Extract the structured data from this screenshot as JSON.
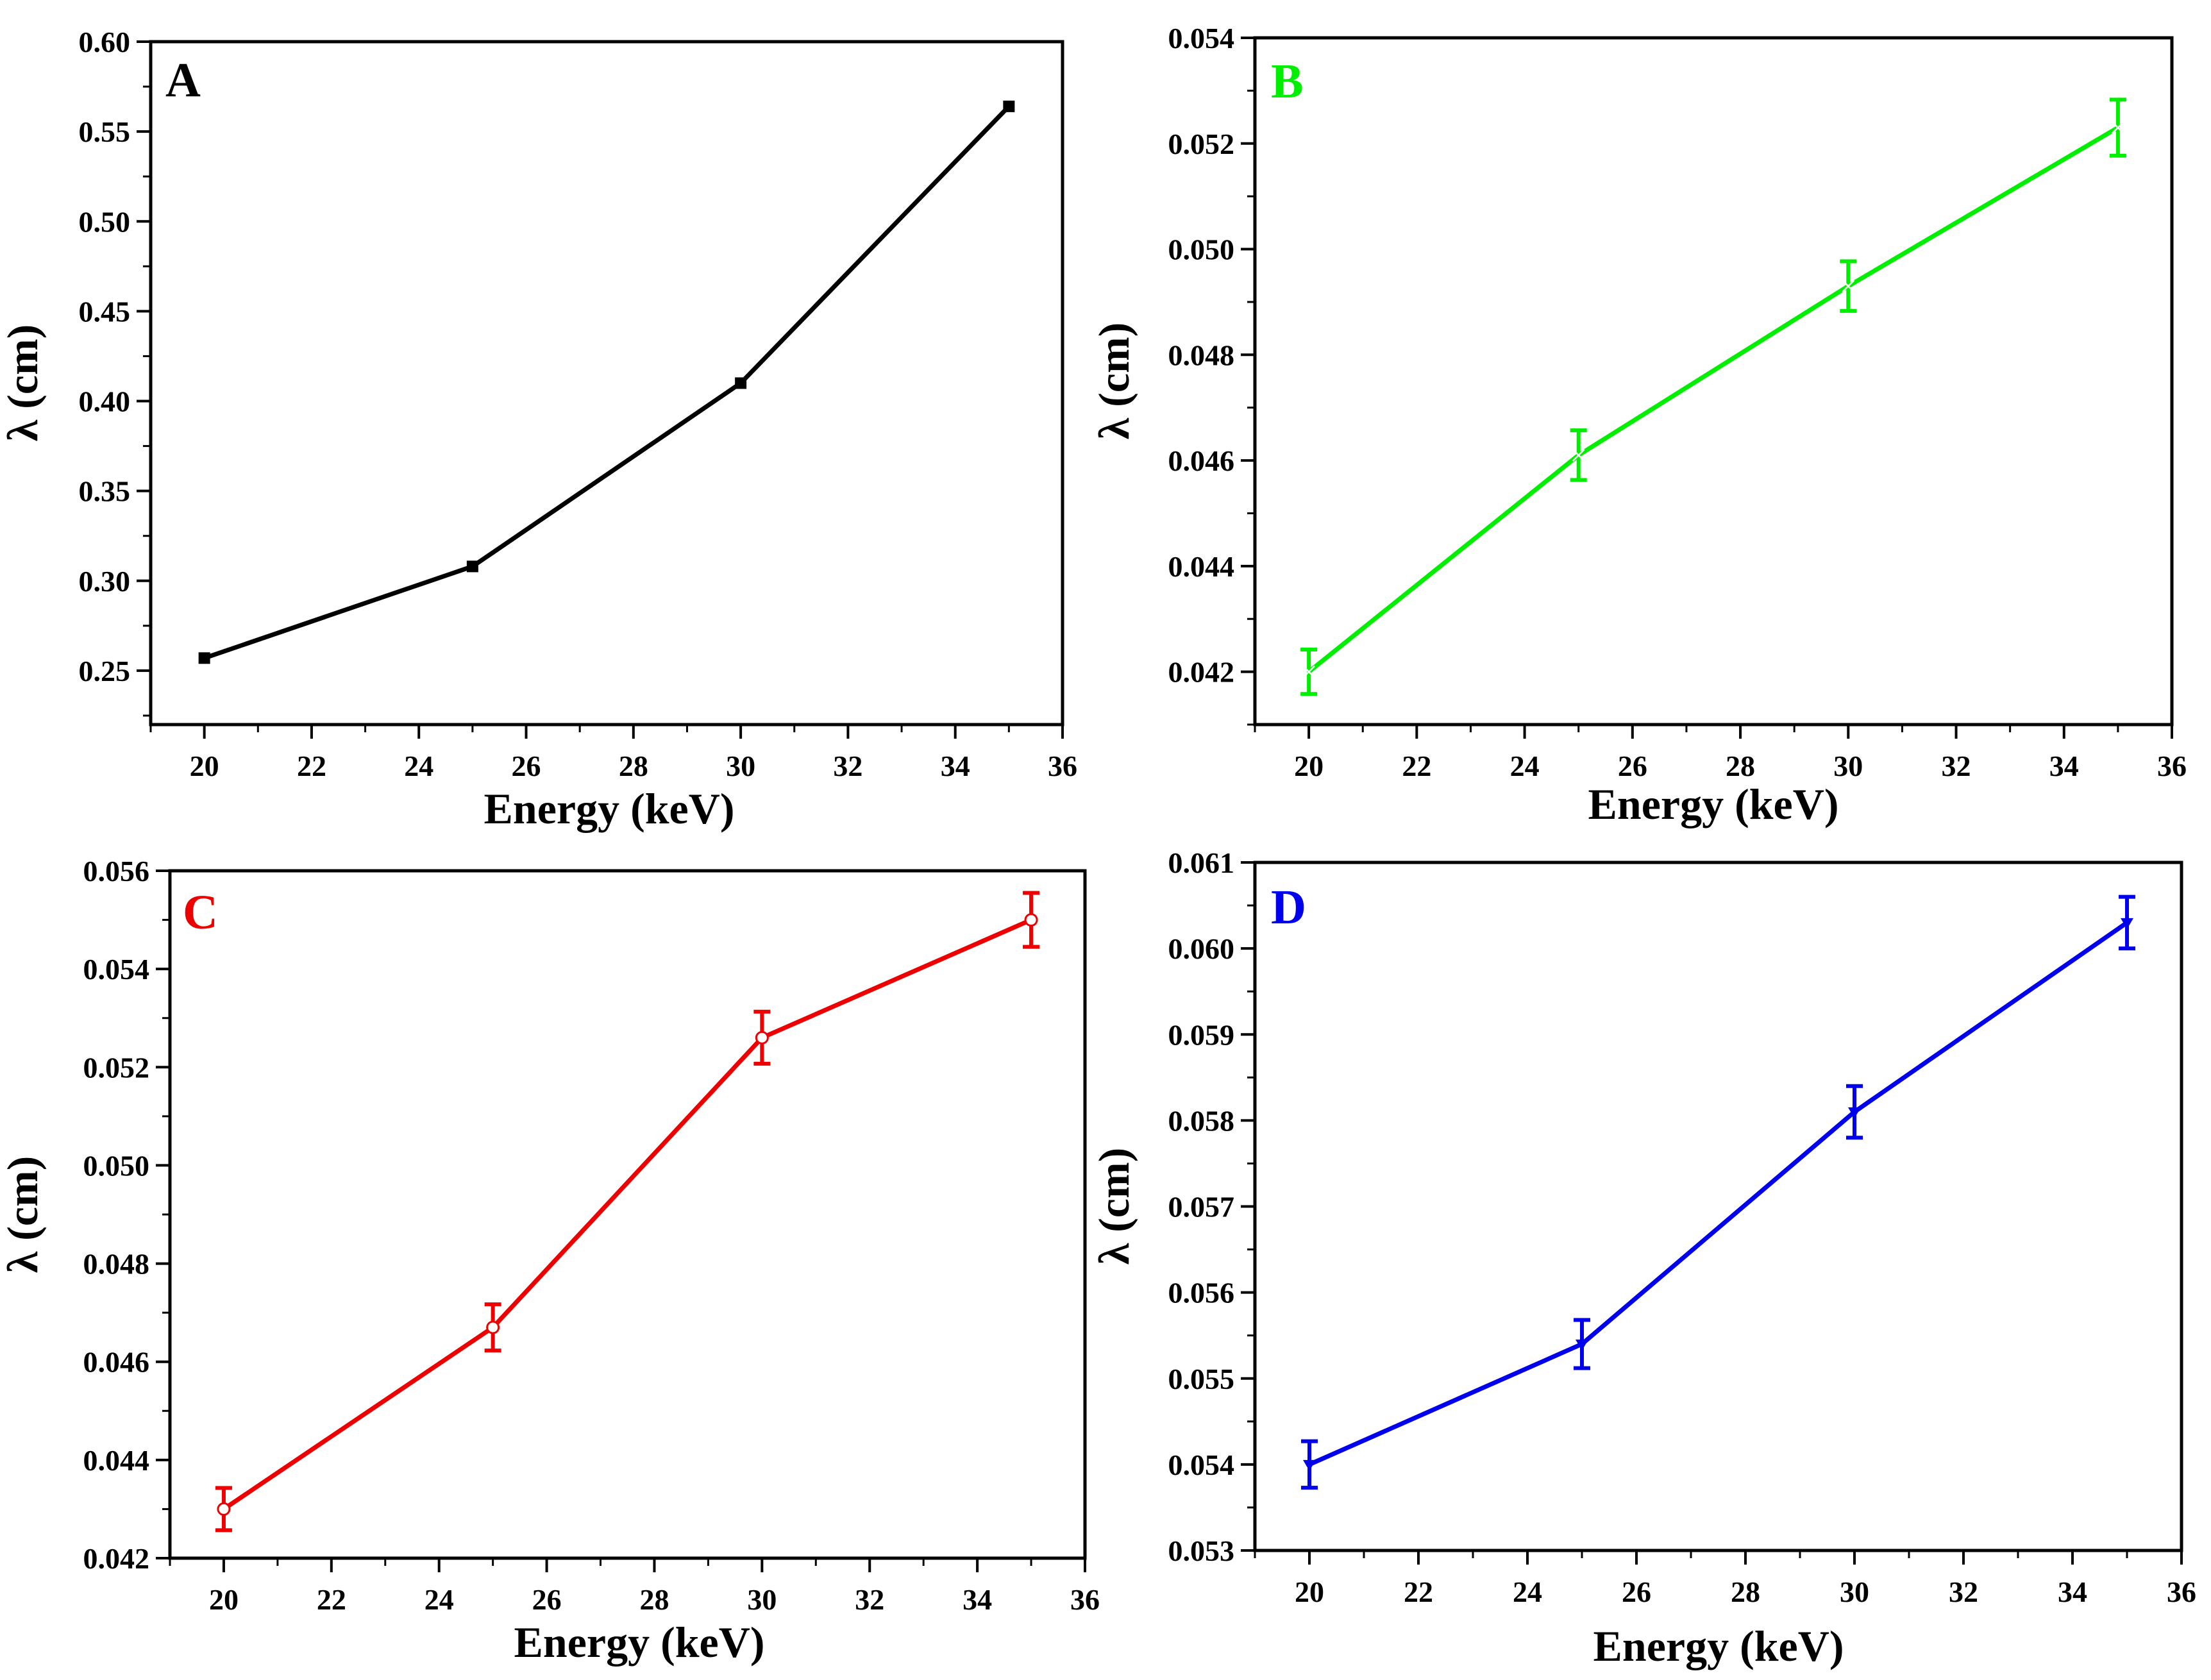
{
  "chart_data": [
    {
      "type": "line",
      "panel_label": "A",
      "color": "#000000",
      "marker": "filled-square",
      "error_bars": false,
      "xlabel": "Energy (keV)",
      "ylabel": "λ (cm)",
      "xlim": [
        19,
        36
      ],
      "ylim": [
        0.22,
        0.6
      ],
      "xticks": [
        20,
        22,
        24,
        26,
        28,
        30,
        32,
        34,
        36
      ],
      "xtick_labels": [
        "20",
        "22",
        "24",
        "26",
        "28",
        "30",
        "32",
        "34",
        "36"
      ],
      "yticks": [
        0.25,
        0.3,
        0.35,
        0.4,
        0.45,
        0.5,
        0.55,
        0.6
      ],
      "ytick_labels": [
        "0.25",
        "0.30",
        "0.35",
        "0.40",
        "0.45",
        "0.50",
        "0.55",
        "0.60"
      ],
      "x": [
        20,
        25,
        30,
        35
      ],
      "y": [
        0.257,
        0.308,
        0.41,
        0.564
      ]
    },
    {
      "type": "line",
      "panel_label": "B",
      "color": "#00ee00",
      "marker": "star",
      "error_bars": true,
      "xlabel": "Energy (keV)",
      "ylabel": "λ (cm)",
      "xlim": [
        19,
        36
      ],
      "ylim": [
        0.041,
        0.054
      ],
      "xticks": [
        20,
        22,
        24,
        26,
        28,
        30,
        32,
        34,
        36
      ],
      "xtick_labels": [
        "20",
        "22",
        "24",
        "26",
        "28",
        "30",
        "32",
        "34",
        "36"
      ],
      "yticks": [
        0.042,
        0.044,
        0.046,
        0.048,
        0.05,
        0.052,
        0.054
      ],
      "ytick_labels": [
        "0.042",
        "0.044",
        "0.046",
        "0.048",
        "0.050",
        "0.052",
        "0.054"
      ],
      "x": [
        20,
        25,
        30,
        35
      ],
      "y": [
        0.042,
        0.0461,
        0.0493,
        0.0523
      ],
      "yerr": [
        0.00042,
        0.00047,
        0.00047,
        0.00053
      ]
    },
    {
      "type": "line",
      "panel_label": "C",
      "color": "#ee0000",
      "marker": "open-circle",
      "error_bars": true,
      "xlabel": "Energy (keV)",
      "ylabel": "λ (cm)",
      "xlim": [
        19,
        36
      ],
      "ylim": [
        0.042,
        0.056
      ],
      "xticks": [
        20,
        22,
        24,
        26,
        28,
        30,
        32,
        34,
        36
      ],
      "xtick_labels": [
        "20",
        "22",
        "24",
        "26",
        "28",
        "30",
        "32",
        "34",
        "36"
      ],
      "yticks": [
        0.042,
        0.044,
        0.046,
        0.048,
        0.05,
        0.052,
        0.054,
        0.056
      ],
      "ytick_labels": [
        "0.042",
        "0.044",
        "0.046",
        "0.048",
        "0.050",
        "0.052",
        "0.054",
        "0.056"
      ],
      "x": [
        20,
        25,
        30,
        35
      ],
      "y": [
        0.043,
        0.0467,
        0.0526,
        0.055
      ],
      "yerr": [
        0.00043,
        0.00047,
        0.00053,
        0.00055
      ]
    },
    {
      "type": "line",
      "panel_label": "D",
      "color": "#0000ee",
      "marker": "down-triangle",
      "error_bars": true,
      "xlabel": "Energy (keV)",
      "ylabel": "λ (cm)",
      "xlim": [
        19,
        36
      ],
      "ylim": [
        0.053,
        0.061
      ],
      "xticks": [
        20,
        22,
        24,
        26,
        28,
        30,
        32,
        34,
        36
      ],
      "xtick_labels": [
        "20",
        "22",
        "24",
        "26",
        "28",
        "30",
        "32",
        "34",
        "36"
      ],
      "yticks": [
        0.053,
        0.054,
        0.055,
        0.056,
        0.057,
        0.058,
        0.059,
        0.06,
        0.061
      ],
      "ytick_labels": [
        "0.053",
        "0.054",
        "0.055",
        "0.056",
        "0.057",
        "0.058",
        "0.059",
        "0.060",
        "0.061"
      ],
      "x": [
        20,
        25,
        30,
        35
      ],
      "y": [
        0.054,
        0.0554,
        0.0581,
        0.0603
      ],
      "yerr": [
        0.00027,
        0.00028,
        0.0003,
        0.0003
      ]
    }
  ]
}
